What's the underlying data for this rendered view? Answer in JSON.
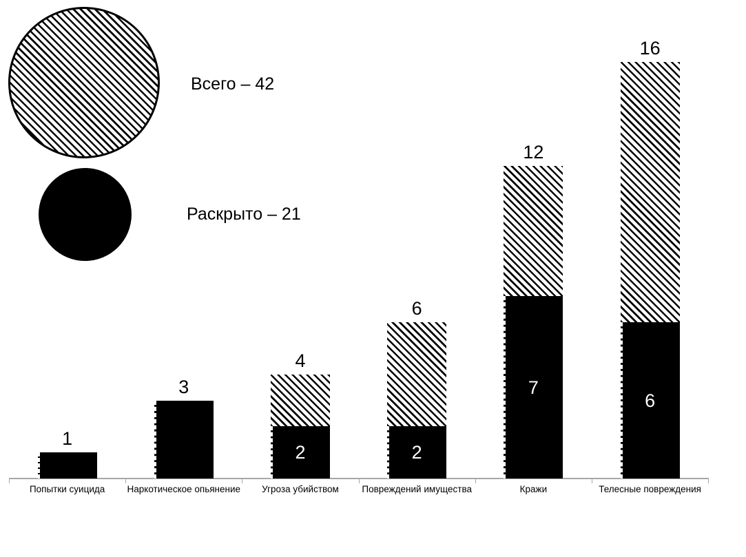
{
  "legend": {
    "total_label": "Всего – 42",
    "solved_label": "Раскрыто – 21"
  },
  "chart_data": {
    "type": "bar",
    "subtype": "stacked-overlay",
    "title": "",
    "xlabel": "",
    "ylabel": "",
    "categories": [
      "Попытки суицида",
      "Наркотическое опьянение",
      "Угроза убийством",
      "Повреждений имущества",
      "Кражи",
      "Телесные повреждения"
    ],
    "series": [
      {
        "name": "Раскрыто",
        "fill": "solid-black",
        "values": [
          1,
          3,
          2,
          2,
          7,
          6
        ]
      },
      {
        "name": "Всего",
        "fill": "diagonal-hatch",
        "values": [
          1,
          3,
          4,
          6,
          12,
          16
        ]
      }
    ],
    "bar_top_labels": [
      "1",
      "3",
      "4",
      "6",
      "12",
      "16"
    ],
    "bar_inside_labels": [
      "",
      "",
      "2",
      "2",
      "7",
      "6"
    ],
    "legend_entries": [
      {
        "swatch": "hatched-circle",
        "label": "Всего – 42",
        "value": 42
      },
      {
        "swatch": "solid-circle",
        "label": "Раскрыто – 21",
        "value": 21
      }
    ],
    "ylim": [
      0,
      16.8
    ],
    "grid": false,
    "legend_position": "top-left"
  },
  "colors": {
    "bar_fill": "#000000",
    "hatch_line": "#000000",
    "background": "#ffffff",
    "axis": "#a6a6a6",
    "text": "#000000",
    "inside_label": "#ffffff"
  }
}
